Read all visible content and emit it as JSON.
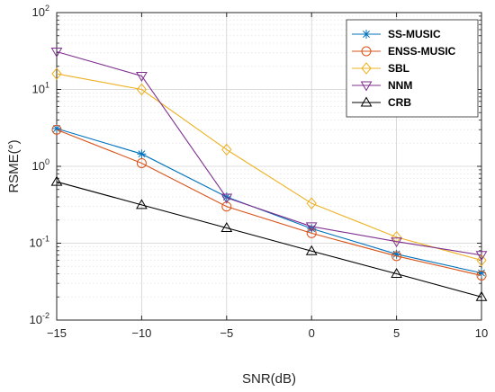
{
  "chart_data": {
    "type": "line",
    "title": "",
    "xlabel": "SNR(dB)",
    "ylabel": "RSME(°)",
    "x": [
      -15,
      -10,
      -5,
      0,
      5,
      10
    ],
    "xlim": [
      -15,
      10
    ],
    "ylim": [
      0.01,
      100
    ],
    "yscale": "log",
    "x_ticks": [
      -15,
      -10,
      -5,
      0,
      5,
      10
    ],
    "y_ticks": [
      {
        "value": 0.01,
        "base": "10",
        "exp": "-2"
      },
      {
        "value": 0.1,
        "base": "10",
        "exp": "-1"
      },
      {
        "value": 1,
        "base": "10",
        "exp": "0"
      },
      {
        "value": 10,
        "base": "10",
        "exp": "1"
      },
      {
        "value": 100,
        "base": "10",
        "exp": "2"
      }
    ],
    "grid": true,
    "minor_grid": true,
    "legend_position": "top-right",
    "series": [
      {
        "name": "SS-MUSIC",
        "color": "#0072BD",
        "marker": "asterisk",
        "values": [
          3.1,
          1.45,
          0.4,
          0.155,
          0.072,
          0.041
        ]
      },
      {
        "name": "ENSS-MUSIC",
        "color": "#D95319",
        "marker": "circle",
        "values": [
          3.0,
          1.1,
          0.3,
          0.135,
          0.068,
          0.038
        ]
      },
      {
        "name": "SBL",
        "color": "#EDB120",
        "marker": "diamond",
        "values": [
          16.0,
          10.0,
          1.65,
          0.33,
          0.12,
          0.06
        ]
      },
      {
        "name": "NNM",
        "color": "#7E2F8E",
        "marker": "triangle-down",
        "values": [
          31.0,
          15.0,
          0.39,
          0.165,
          0.105,
          0.07
        ]
      },
      {
        "name": "CRB",
        "color": "#000000",
        "marker": "triangle-up",
        "values": [
          0.63,
          0.315,
          0.158,
          0.079,
          0.04,
          0.02
        ]
      }
    ]
  }
}
